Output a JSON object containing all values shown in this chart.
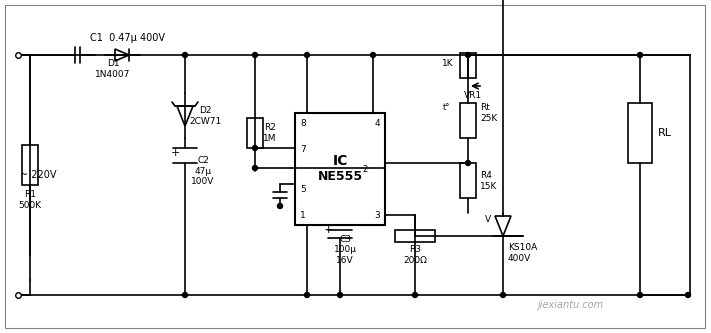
{
  "bg_color": "#ffffff",
  "line_color": "#000000",
  "text_color": "#000000",
  "fig_width": 7.11,
  "fig_height": 3.33,
  "title": "",
  "components": {
    "C1_label": "C1  0.47μ 400V",
    "D1_label": "D1\n1N4007",
    "R1_label": "R1\n500K",
    "ac_label": "~ 220V",
    "C2_label": "C2 +\n47μ\n100V",
    "D2_label": "D2\n2CW71",
    "R2_label": "R2\n1M",
    "IC_label": "IC\nNE555",
    "IC_sup": "2",
    "C3_label": "C3\n100μ\n16V",
    "R3_label": "R3\n200Ω",
    "VR1_label": "1K\nVR1",
    "Rt_label": "t°  Rt\n   25K",
    "R4_label": "R4\n15K",
    "RL_label": "RL",
    "KS_label": "KS10A\n400V",
    "V_label": "V",
    "pin8": "8",
    "pin4": "4",
    "pin7": "7",
    "pin5": "5",
    "pin1": "1",
    "pin3": "3"
  },
  "watermark": "jiexiantu.com"
}
